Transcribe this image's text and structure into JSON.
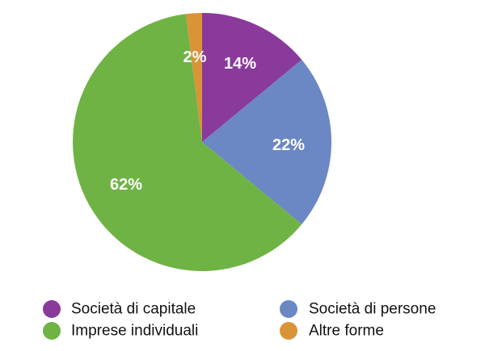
{
  "chart_data": {
    "type": "pie",
    "slices": [
      {
        "name": "Società di capitale",
        "value": 14,
        "label": "14%",
        "color": "#8a3a9a"
      },
      {
        "name": "Società di persone",
        "value": 22,
        "label": "22%",
        "color": "#6b87c4"
      },
      {
        "name": "Imprese individuali",
        "value": 62,
        "label": "62%",
        "color": "#6fb344"
      },
      {
        "name": "Altre forme",
        "value": 2,
        "label": "2%",
        "color": "#d99438"
      }
    ],
    "legend": {
      "placement": "bottom",
      "items": [
        {
          "label": "Società di capitale",
          "color": "#8a3a9a"
        },
        {
          "label": "Società di persone",
          "color": "#6b87c4"
        },
        {
          "label": "Imprese individuali",
          "color": "#6fb344"
        },
        {
          "label": "Altre forme",
          "color": "#d99438"
        }
      ]
    }
  }
}
